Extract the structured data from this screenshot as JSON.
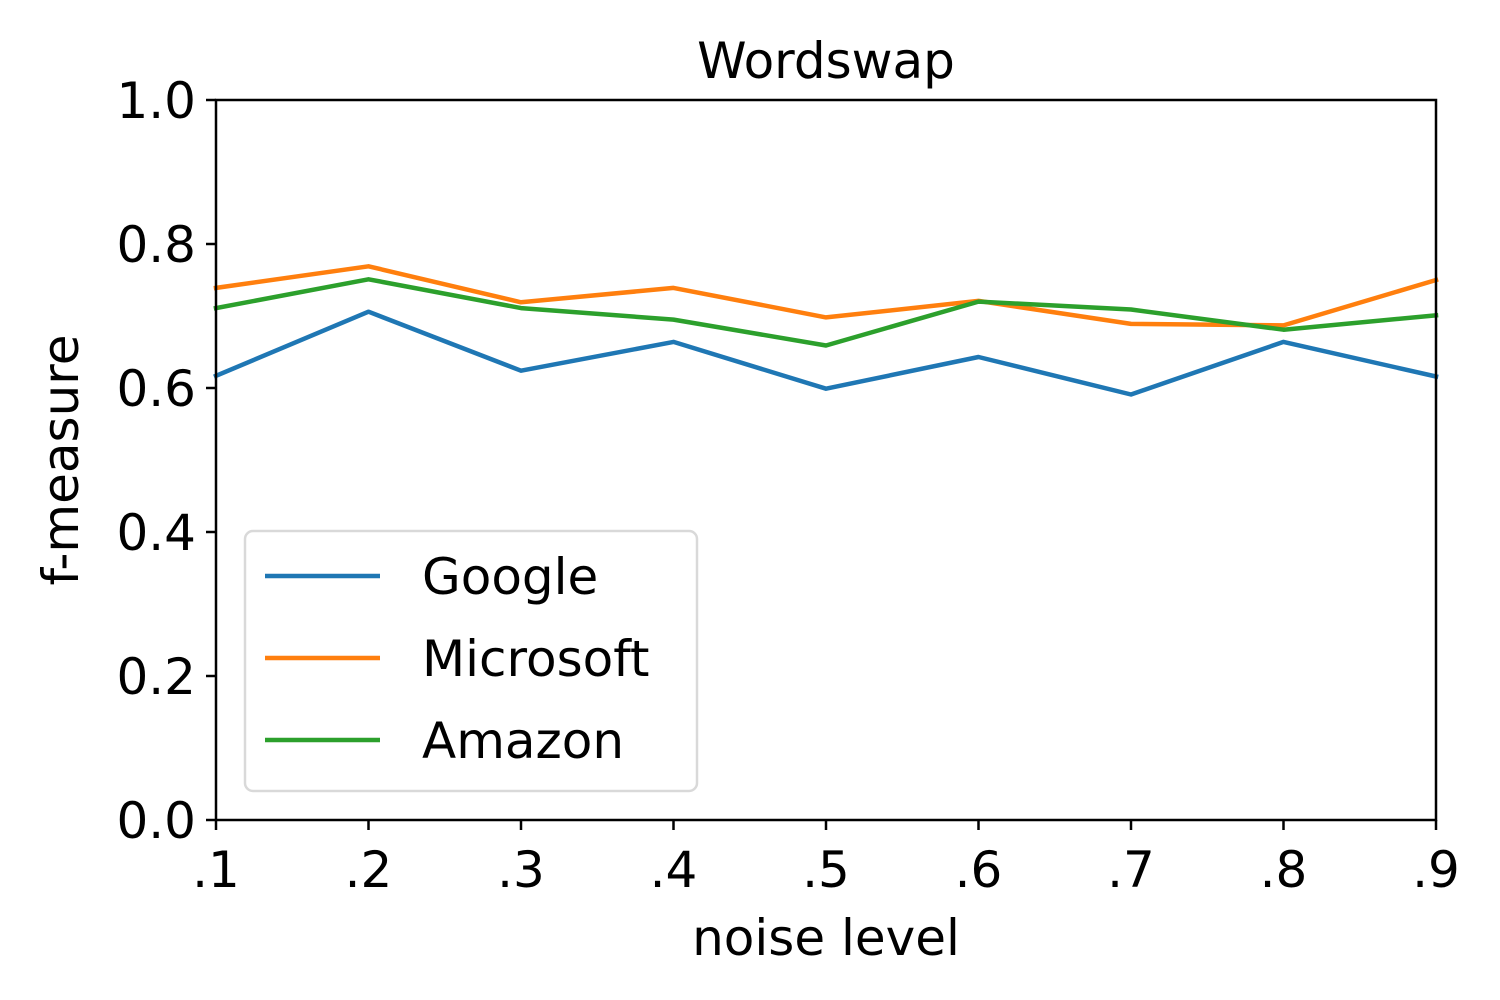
{
  "chart_data": {
    "type": "line",
    "title": "Wordswap",
    "xlabel": "noise level",
    "ylabel": "f-measure",
    "x": [
      ".1",
      ".2",
      ".3",
      ".4",
      ".5",
      ".6",
      ".7",
      ".8",
      ".9"
    ],
    "ylim": [
      0,
      1.0
    ],
    "yticks": [
      "0.0",
      "0.2",
      "0.4",
      "0.6",
      "0.8",
      "1.0"
    ],
    "grid": false,
    "legend_position": "lower-left",
    "series": [
      {
        "name": "Google",
        "color": "#1f77b4",
        "values": [
          0.617,
          0.706,
          0.624,
          0.664,
          0.599,
          0.643,
          0.591,
          0.664,
          0.616
        ]
      },
      {
        "name": "Microsoft",
        "color": "#ff7f0e",
        "values": [
          0.739,
          0.769,
          0.719,
          0.739,
          0.698,
          0.721,
          0.689,
          0.687,
          0.75
        ]
      },
      {
        "name": "Amazon",
        "color": "#2ca02c",
        "values": [
          0.711,
          0.751,
          0.711,
          0.695,
          0.659,
          0.72,
          0.709,
          0.681,
          0.701
        ]
      }
    ]
  }
}
